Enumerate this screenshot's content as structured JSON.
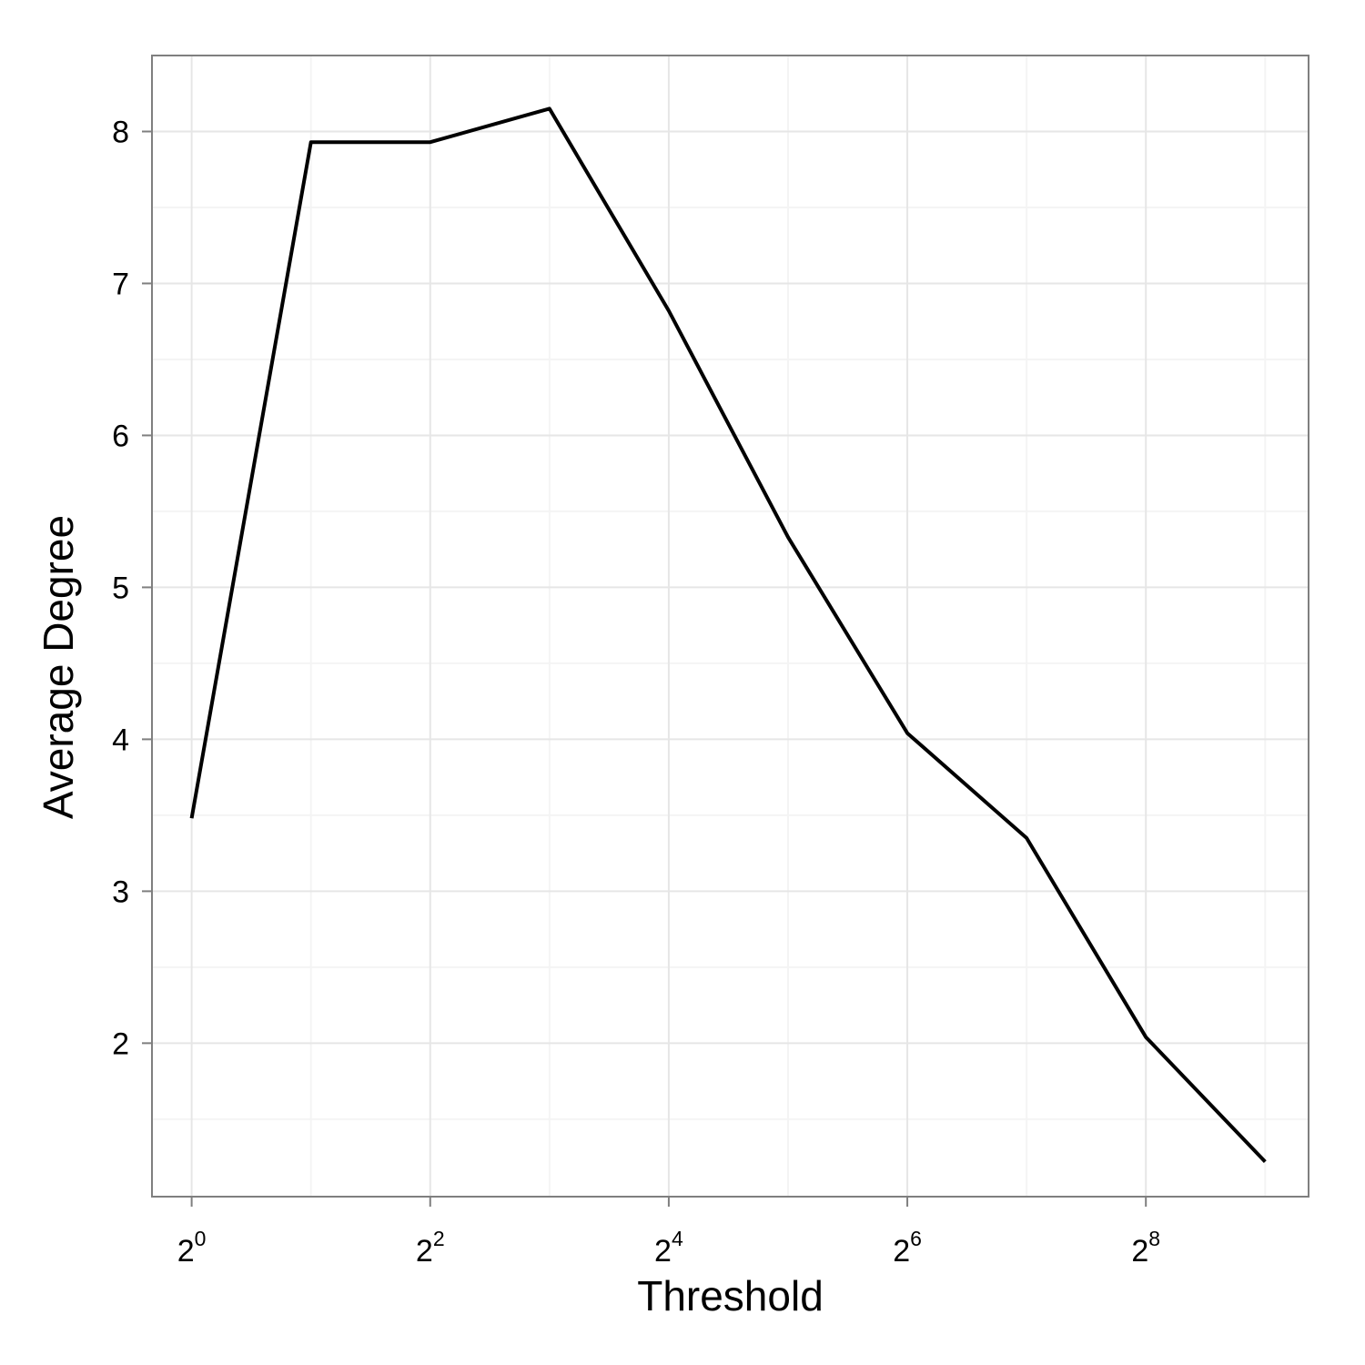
{
  "chart_data": {
    "type": "line",
    "title": "",
    "xlabel": "Threshold",
    "ylabel": "Average Degree",
    "x_scale": "log2",
    "x_tick_base": "2",
    "x_ticks": [
      {
        "value": 1,
        "base": "2",
        "exponent": "0"
      },
      {
        "value": 4,
        "base": "2",
        "exponent": "2"
      },
      {
        "value": 16,
        "base": "2",
        "exponent": "4"
      },
      {
        "value": 64,
        "base": "2",
        "exponent": "6"
      },
      {
        "value": 256,
        "base": "2",
        "exponent": "8"
      }
    ],
    "y_ticks": [
      2,
      3,
      4,
      5,
      6,
      7,
      8
    ],
    "xlim": [
      0.794,
      659
    ],
    "ylim": [
      0.99,
      8.5
    ],
    "grid": true,
    "series": [
      {
        "x": [
          1,
          2,
          4,
          8,
          16,
          32,
          64,
          128,
          256,
          512
        ],
        "y": [
          3.48,
          7.93,
          7.93,
          8.15,
          6.82,
          5.33,
          4.04,
          3.35,
          2.04,
          1.22
        ]
      }
    ],
    "colors": {
      "line": "#000000",
      "panel_border": "#7f7f7f",
      "grid_major": "#e6e6e6",
      "grid_minor": "#f4f4f4",
      "background": "#ffffff"
    }
  }
}
